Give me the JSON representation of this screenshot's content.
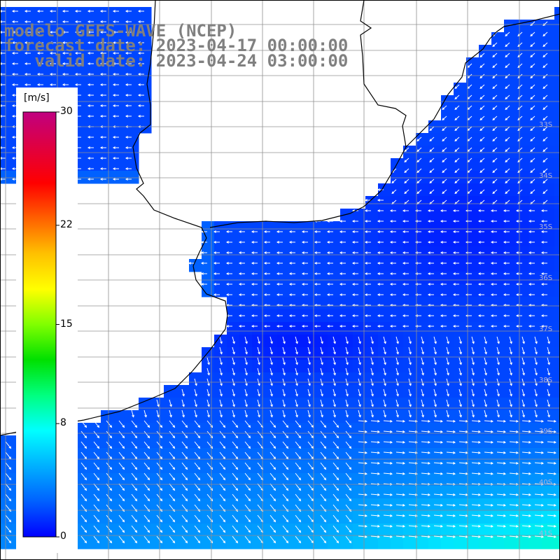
{
  "title": {
    "line1": "modelo GEFS-WAVE (NCEP)",
    "line2": "forecast date: 2023-04-17 00:00:00",
    "line3": "   valid date: 2023-04-24 03:00:00"
  },
  "colorbar": {
    "unit": "[m/s]",
    "ticks": [
      "30",
      "22",
      "15",
      "8",
      "0"
    ],
    "tick_values": [
      30,
      22,
      15,
      8,
      0
    ],
    "colors": [
      "#0000ff",
      "#0060ff",
      "#00b0ff",
      "#00ffff",
      "#00ff80",
      "#00e000",
      "#80ff00",
      "#ffff00",
      "#ffc000",
      "#ff6000",
      "#ff0000",
      "#e00040",
      "#c00080"
    ]
  },
  "lat_labels": [
    "33S",
    "34S",
    "35S",
    "36S",
    "37S",
    "38S",
    "39S",
    "40S",
    "41S"
  ],
  "colors": {
    "land": "#ffffff",
    "coast": "#000000",
    "grid": "#909090",
    "arrow": "#ffffff"
  }
}
